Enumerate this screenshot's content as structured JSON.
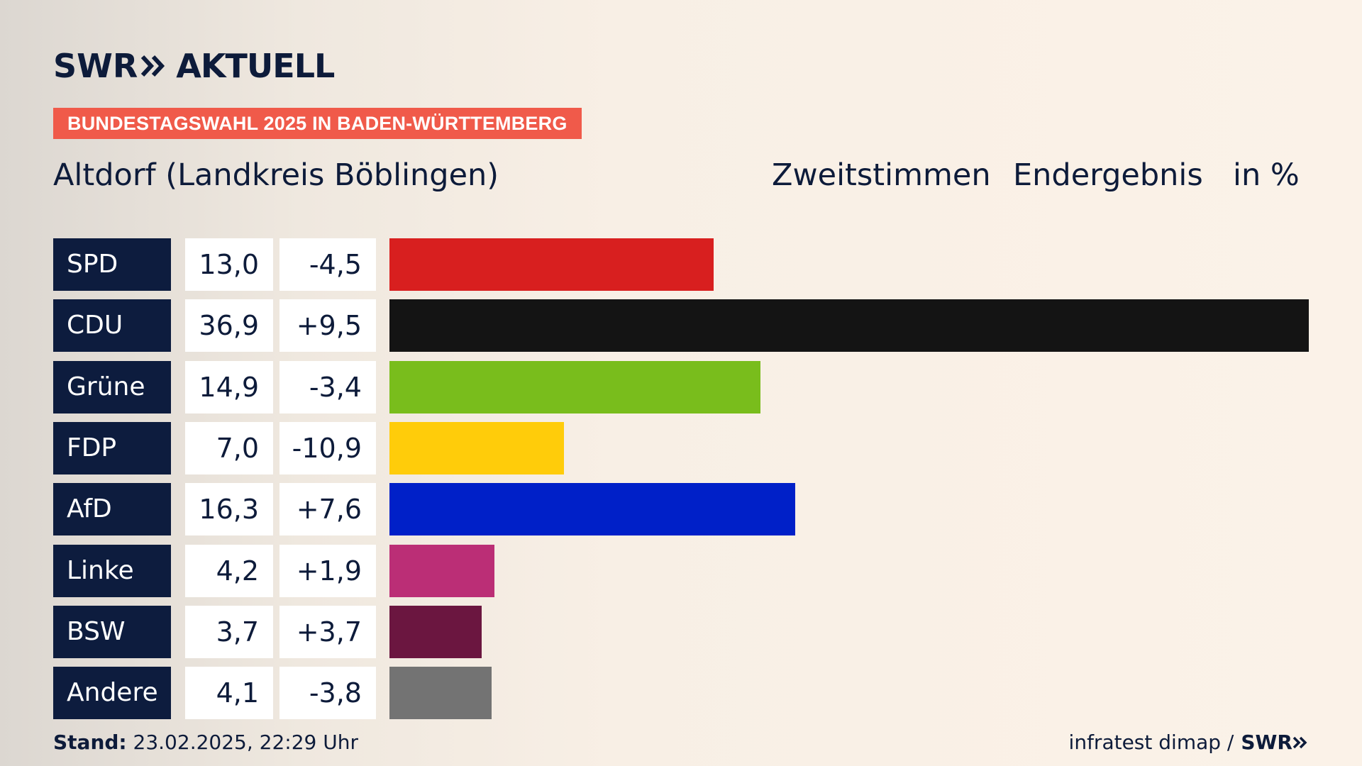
{
  "brand": {
    "name": "SWR",
    "product": "AKTUELL"
  },
  "tag": "BUNDESTAGSWAHL 2025 IN BADEN-WÜRTTEMBERG",
  "place": "Altdorf (Landkreis Böblingen)",
  "headers": {
    "vote_type": "Zweitstimmen",
    "status": "Endergebnis",
    "unit": "in %"
  },
  "chart_data": {
    "type": "bar",
    "orientation": "horizontal",
    "categories": [
      "SPD",
      "CDU",
      "Grüne",
      "FDP",
      "AfD",
      "Linke",
      "BSW",
      "Andere"
    ],
    "values": [
      13.0,
      36.9,
      14.9,
      7.0,
      16.3,
      4.2,
      3.7,
      4.1
    ],
    "value_labels": [
      "13,0",
      "36,9",
      "14,9",
      "7,0",
      "16,3",
      "4,2",
      "3,7",
      "4,1"
    ],
    "changes": [
      -4.5,
      9.5,
      -3.4,
      -10.9,
      7.6,
      1.9,
      3.7,
      -3.8
    ],
    "change_labels": [
      "-4,5",
      "+9,5",
      "-3,4",
      "-10,9",
      "+7,6",
      "+1,9",
      "+3,7",
      "-3,8"
    ],
    "colors": [
      "#d81f1f",
      "#141414",
      "#79bd1c",
      "#ffcc0a",
      "#0020c8",
      "#bb2e76",
      "#6b1640",
      "#737373"
    ],
    "xlim": [
      0,
      36.9
    ]
  },
  "footer": {
    "stand_label": "Stand:",
    "stand_value": "23.02.2025, 22:29 Uhr",
    "source": "infratest dimap /",
    "source_brand": "SWR"
  }
}
